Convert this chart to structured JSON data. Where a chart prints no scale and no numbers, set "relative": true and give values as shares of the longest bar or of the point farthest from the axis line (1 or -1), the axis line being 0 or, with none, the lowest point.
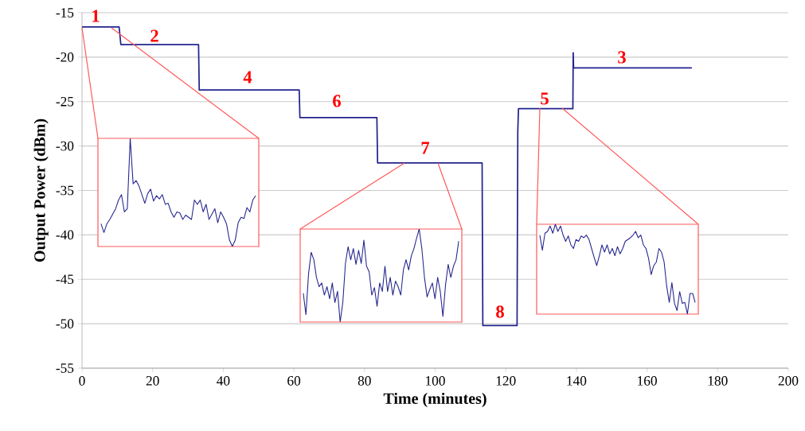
{
  "chart_data": [
    {
      "type": "line",
      "xlabel": "Time (minutes)",
      "ylabel": "Output Power (dBm)",
      "x": [
        0,
        10.5,
        11,
        33,
        33.2,
        61.5,
        61.7,
        83.5,
        83.7,
        113.3,
        113.5,
        123.2,
        123.4,
        123.6,
        139,
        139.1,
        139.2,
        172.7
      ],
      "values": [
        -16.6,
        -16.6,
        -18.6,
        -18.6,
        -23.7,
        -23.7,
        -26.8,
        -26.8,
        -31.9,
        -31.9,
        -50.2,
        -50.2,
        -28.4,
        -25.8,
        -25.8,
        -19.5,
        -21.2,
        -21.2
      ],
      "color": "#23238e",
      "xlim": [
        0,
        200
      ],
      "ylim": [
        -55,
        -15
      ],
      "xticks": [
        0,
        20,
        40,
        60,
        80,
        100,
        120,
        140,
        160,
        180,
        200
      ],
      "yticks": [
        -55,
        -50,
        -45,
        -40,
        -35,
        -30,
        -25,
        -20,
        -15
      ],
      "grid": "y",
      "annotations": [
        "1",
        "2",
        "4",
        "6",
        "7",
        "8",
        "5",
        "3"
      ]
    },
    {
      "type": "line",
      "relative": true,
      "color": "#23238e",
      "categories": [
        null,
        null,
        null,
        null,
        null,
        null,
        null,
        null,
        null,
        null,
        null,
        null,
        null,
        null,
        null,
        null,
        null,
        null,
        null,
        null,
        null,
        null,
        null,
        null,
        null,
        null,
        null,
        null,
        null,
        null,
        null,
        null,
        null,
        null,
        null,
        null,
        null,
        null,
        null,
        null,
        null,
        null,
        null,
        null,
        null,
        null,
        null,
        null,
        null,
        null,
        null,
        null,
        null,
        null
      ],
      "values": [
        0.21,
        0.13,
        0.21,
        0.25,
        0.3,
        0.35,
        0.43,
        0.48,
        0.32,
        0.35,
        1,
        0.58,
        0.61,
        0.56,
        0.48,
        0.4,
        0.49,
        0.53,
        0.42,
        0.47,
        0.44,
        0.48,
        0.39,
        0.4,
        0.32,
        0.27,
        0.32,
        0.31,
        0.25,
        0.29,
        0.27,
        0.25,
        0.43,
        0.39,
        0.43,
        0.32,
        0.39,
        0.25,
        0.3,
        0.35,
        0.22,
        0.32,
        0.27,
        0.21,
        0.06,
        0,
        0.06,
        0.22,
        0.27,
        0.26,
        0.36,
        0.32,
        0.43,
        0.47
      ]
    },
    {
      "type": "line",
      "relative": true,
      "color": "#23238e",
      "categories": [
        null,
        null,
        null,
        null,
        null,
        null,
        null,
        null,
        null,
        null,
        null,
        null,
        null,
        null,
        null,
        null,
        null,
        null,
        null,
        null,
        null,
        null,
        null,
        null,
        null,
        null,
        null,
        null,
        null,
        null,
        null,
        null,
        null,
        null,
        null,
        null,
        null,
        null,
        null,
        null,
        null,
        null,
        null,
        null,
        null,
        null,
        null,
        null,
        null,
        null,
        null,
        null,
        null,
        null,
        null,
        null,
        null,
        null,
        null,
        null
      ],
      "values": [
        0.31,
        0.08,
        0.52,
        0.75,
        0.67,
        0.48,
        0.38,
        0.42,
        0.29,
        0.38,
        0.25,
        0.42,
        0.21,
        0.33,
        0,
        0.21,
        0.63,
        0.81,
        0.67,
        0.79,
        0.62,
        0.77,
        0.63,
        0.88,
        0.6,
        0.54,
        0.29,
        0.37,
        0.17,
        0.42,
        0.33,
        0.6,
        0.33,
        0.48,
        0.29,
        0.44,
        0.38,
        0.29,
        0.56,
        0.67,
        0.56,
        0.71,
        0.79,
        0.9,
        1,
        0.79,
        0.48,
        0.27,
        0.35,
        0.42,
        0.25,
        0.48,
        0.33,
        0.06,
        0.4,
        0.62,
        0.48,
        0.6,
        0.67,
        0.87
      ]
    },
    {
      "type": "line",
      "relative": true,
      "color": "#23238e",
      "categories": [
        null,
        null,
        null,
        null,
        null,
        null,
        null,
        null,
        null,
        null,
        null,
        null,
        null,
        null,
        null,
        null,
        null,
        null,
        null,
        null,
        null,
        null,
        null,
        null,
        null,
        null,
        null,
        null,
        null,
        null,
        null,
        null,
        null,
        null,
        null,
        null,
        null,
        null,
        null,
        null,
        null,
        null,
        null,
        null,
        null,
        null,
        null,
        null,
        null,
        null,
        null,
        null,
        null,
        null,
        null,
        null,
        null,
        null,
        null,
        null,
        null
      ],
      "values": [
        0.88,
        0.71,
        0.9,
        0.92,
        0.98,
        0.9,
        1,
        0.92,
        0.98,
        0.88,
        0.81,
        0.87,
        0.77,
        0.73,
        0.83,
        0.81,
        0.87,
        0.85,
        0.88,
        0.83,
        0.73,
        0.63,
        0.54,
        0.65,
        0.77,
        0.69,
        0.77,
        0.67,
        0.73,
        0.65,
        0.75,
        0.67,
        0.73,
        0.81,
        0.83,
        0.85,
        0.88,
        0.92,
        0.85,
        0.88,
        0.77,
        0.73,
        0.62,
        0.44,
        0.54,
        0.58,
        0.73,
        0.69,
        0.58,
        0.31,
        0.13,
        0.35,
        0.12,
        0.04,
        0.25,
        0.12,
        0.13,
        0,
        0.23,
        0.23,
        0.13
      ]
    }
  ]
}
